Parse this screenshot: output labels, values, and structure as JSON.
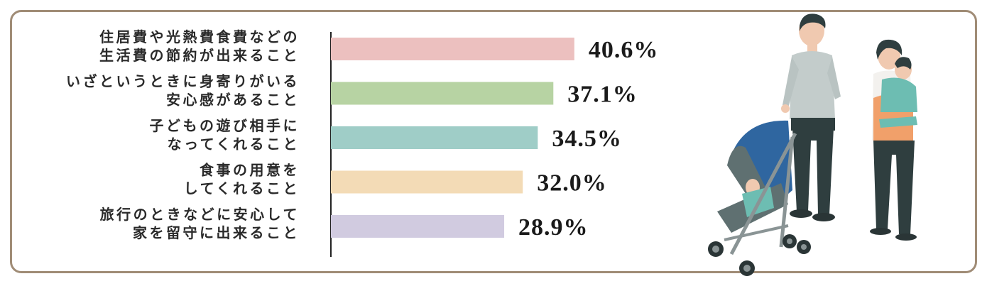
{
  "chart_data": {
    "type": "bar",
    "orientation": "horizontal",
    "categories": [
      [
        "住居費や光熱費食費などの",
        "生活費の節約が出来ること"
      ],
      [
        "いざというときに身寄りがいる",
        "安心感があること"
      ],
      [
        "子どもの遊び相手に",
        "なってくれること"
      ],
      [
        "食事の用意を",
        "してくれること"
      ],
      [
        "旅行のときなどに安心して",
        "家を留守に出来ること"
      ]
    ],
    "values": [
      40.6,
      37.1,
      34.5,
      32.0,
      28.9
    ],
    "value_labels": [
      "40.6%",
      "37.1%",
      "34.5%",
      "32.0%",
      "28.9%"
    ],
    "bar_colors": [
      "#ecc0bf",
      "#b7d3a3",
      "#9fcdc7",
      "#f3dbb6",
      "#d1cbe0"
    ],
    "xlim": [
      0,
      45
    ],
    "title": "",
    "xlabel": "",
    "ylabel": "",
    "grid": false
  },
  "colors": {
    "border": "#a08c76",
    "axis": "#222222"
  },
  "illustration": {
    "name": "family-with-stroller"
  }
}
